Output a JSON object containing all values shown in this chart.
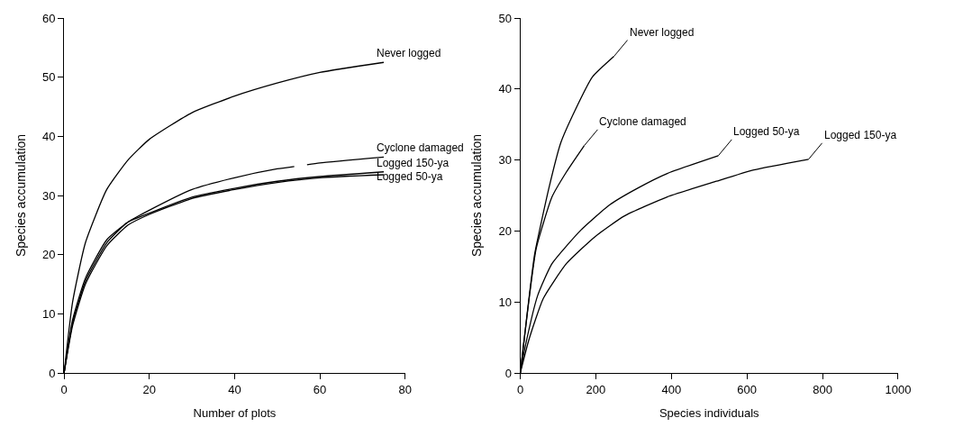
{
  "chart_data": [
    {
      "type": "line",
      "xlabel": "Number of plots",
      "ylabel": "Species accumulation",
      "xlim": [
        0,
        80
      ],
      "xticks": [
        0,
        20,
        40,
        60,
        80
      ],
      "ylim": [
        0,
        60
      ],
      "yticks": [
        0,
        10,
        20,
        30,
        40,
        50,
        60
      ],
      "legend": false,
      "marker": "none",
      "line_style": "solid",
      "series": [
        {
          "name": "Never logged",
          "color": "#000000",
          "x": [
            0,
            2,
            5,
            10,
            15,
            20,
            30,
            40,
            50,
            60,
            75
          ],
          "values": [
            0,
            12,
            22,
            31,
            36,
            39.5,
            44,
            46.8,
            49,
            50.8,
            52.5
          ]
        },
        {
          "name": "Cyclone damaged",
          "color": "#000000",
          "x": [
            0,
            2,
            5,
            10,
            15,
            20,
            30,
            40,
            50,
            54,
            55.5,
            57,
            60,
            75
          ],
          "values": [
            0,
            9,
            16,
            22.5,
            25.5,
            27.5,
            31,
            33,
            34.5,
            34.9,
            null,
            35.2,
            35.5,
            36.5
          ]
        },
        {
          "name": "Logged 150-ya",
          "color": "#000000",
          "x": [
            0,
            2,
            5,
            10,
            15,
            20,
            30,
            40,
            50,
            60,
            75
          ],
          "values": [
            0,
            8.5,
            15.5,
            22,
            25.5,
            27,
            29.7,
            31.2,
            32.4,
            33.2,
            34
          ]
        },
        {
          "name": "Logged 50-ya",
          "color": "#000000",
          "x": [
            0,
            2,
            5,
            10,
            15,
            20,
            30,
            40,
            50,
            60,
            75
          ],
          "values": [
            0,
            8,
            15,
            21.5,
            25,
            26.8,
            29.5,
            31,
            32.2,
            33,
            33.5
          ]
        }
      ]
    },
    {
      "type": "line",
      "xlabel": "Species individuals",
      "ylabel": "Species accumulation",
      "xlim": [
        0,
        1000
      ],
      "xticks": [
        0,
        200,
        400,
        600,
        800,
        1000
      ],
      "ylim": [
        0,
        50
      ],
      "yticks": [
        0,
        10,
        20,
        30,
        40,
        50
      ],
      "legend": false,
      "marker": "none",
      "line_style": "solid",
      "series": [
        {
          "name": "Never logged",
          "color": "#000000",
          "x": [
            0,
            19,
            38,
            76,
            107,
            145,
            191,
            248
          ],
          "values": [
            0,
            8.7,
            16.7,
            26.1,
            32.4,
            37,
            41.7,
            44.6
          ]
        },
        {
          "name": "Cyclone damaged",
          "color": "#000000",
          "x": [
            0,
            20,
            42,
            84,
            122,
            169
          ],
          "values": [
            0,
            9,
            17.5,
            24.8,
            28.3,
            32
          ]
        },
        {
          "name": "Logged 50-ya",
          "color": "#000000",
          "x": [
            0,
            15,
            46,
            84,
            160,
            237,
            313,
            389,
            524
          ],
          "values": [
            0,
            4.2,
            10.9,
            15.4,
            20.1,
            23.7,
            26.1,
            28.1,
            30.6
          ]
        },
        {
          "name": "Logged 150-ya",
          "color": "#000000",
          "x": [
            0,
            23,
            61,
            122,
            198,
            275,
            389,
            519,
            618,
            763
          ],
          "values": [
            0,
            4.7,
            10.5,
            15.4,
            19.2,
            22.1,
            24.8,
            27,
            28.6,
            30.1
          ]
        }
      ]
    }
  ]
}
